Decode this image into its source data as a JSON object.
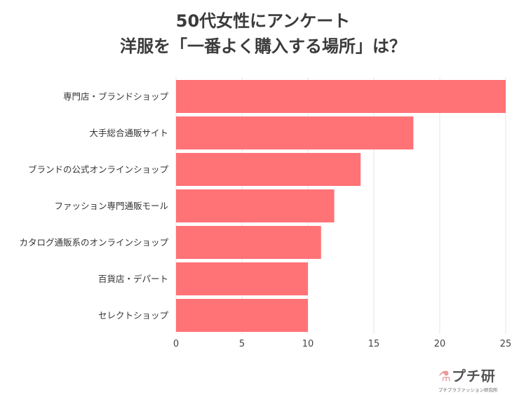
{
  "chart_data": {
    "type": "bar",
    "orientation": "horizontal",
    "title": [
      "50代女性にアンケート",
      "洋服を「一番よく購入する場所」は？"
    ],
    "categories": [
      "専門店・ブランドショップ",
      "大手総合通販サイト",
      "ブランドの公式オンラインショップ",
      "ファッション専門通販モール",
      "カタログ通販系のオンラインショップ",
      "百貨店・デパート",
      "セレクトショップ"
    ],
    "values": [
      25,
      18,
      14,
      12,
      11,
      10,
      10
    ],
    "xlim": [
      0,
      25
    ],
    "xticks": [
      0,
      5,
      10,
      15,
      20,
      25
    ],
    "xlabel": "",
    "ylabel": "",
    "grid": true,
    "bar_color": "#ff7276"
  },
  "logo": {
    "main": "プチ研",
    "sub": "プチプラファッション研究所"
  }
}
